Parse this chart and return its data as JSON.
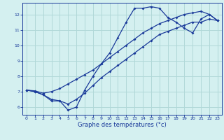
{
  "xlabel": "Graphe des températures (°c)",
  "background_color": "#d4f0f0",
  "grid_color": "#b0d8d8",
  "line_color": "#1a3a9a",
  "xlim": [
    -0.5,
    23.5
  ],
  "ylim": [
    5.5,
    12.75
  ],
  "xticks": [
    0,
    1,
    2,
    3,
    4,
    5,
    6,
    7,
    8,
    9,
    10,
    11,
    12,
    13,
    14,
    15,
    16,
    17,
    18,
    19,
    20,
    21,
    22,
    23
  ],
  "yticks": [
    6,
    7,
    8,
    9,
    10,
    11,
    12
  ],
  "line1_x": [
    0,
    1,
    2,
    3,
    4,
    5,
    6,
    7,
    8,
    9,
    10,
    11,
    12,
    13,
    14,
    15,
    16,
    17,
    18,
    19,
    20,
    21,
    22,
    23
  ],
  "line1_y": [
    7.1,
    7.0,
    6.8,
    6.4,
    6.4,
    5.8,
    6.0,
    7.1,
    8.0,
    8.8,
    9.5,
    10.5,
    11.5,
    12.4,
    12.4,
    12.5,
    12.4,
    11.8,
    11.5,
    11.1,
    10.8,
    11.7,
    12.0,
    11.6
  ],
  "line2_x": [
    0,
    1,
    2,
    3,
    4,
    5,
    6,
    7,
    8,
    9,
    10,
    11,
    12,
    13,
    14,
    15,
    16,
    17,
    18,
    19,
    20,
    21,
    22,
    23
  ],
  "line2_y": [
    7.1,
    7.05,
    6.9,
    7.0,
    7.2,
    7.5,
    7.8,
    8.1,
    8.4,
    8.8,
    9.2,
    9.6,
    10.0,
    10.4,
    10.8,
    11.1,
    11.4,
    11.6,
    11.8,
    12.0,
    12.1,
    12.2,
    12.0,
    11.6
  ],
  "line3_x": [
    0,
    1,
    2,
    3,
    4,
    5,
    6,
    7,
    8,
    9,
    10,
    11,
    12,
    13,
    14,
    15,
    16,
    17,
    18,
    19,
    20,
    21,
    22,
    23
  ],
  "line3_y": [
    7.1,
    7.0,
    6.8,
    6.5,
    6.4,
    6.2,
    6.5,
    6.9,
    7.4,
    7.9,
    8.3,
    8.7,
    9.1,
    9.5,
    9.9,
    10.3,
    10.7,
    10.9,
    11.1,
    11.3,
    11.5,
    11.5,
    11.7,
    11.6
  ]
}
